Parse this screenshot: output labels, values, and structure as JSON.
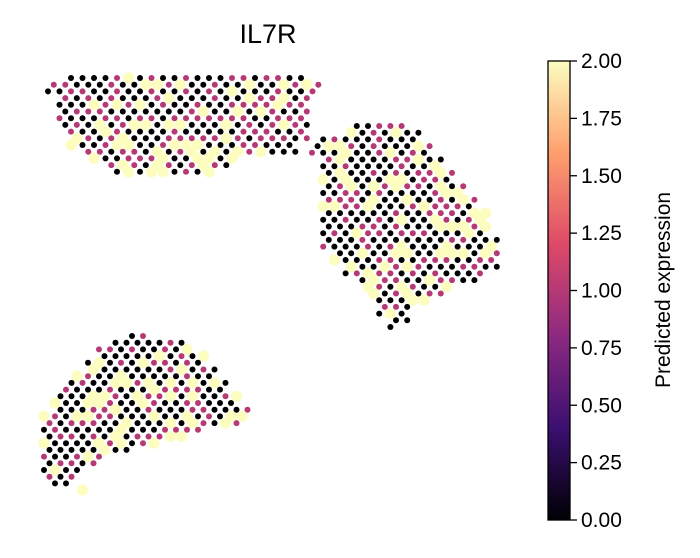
{
  "chart_data": {
    "type": "scatter",
    "title": "IL7R",
    "xlabel": "",
    "ylabel": "",
    "grid": false,
    "axes_visible": false,
    "colormap": "magma",
    "colormap_stops": [
      "#000004",
      "#3b0f70",
      "#8c2981",
      "#de4968",
      "#fe9f6d",
      "#fcfdbf"
    ],
    "colorbar": {
      "label": "Predicted expression",
      "range": [
        0.0,
        2.0
      ],
      "ticks": [
        "0.00",
        "0.25",
        "0.50",
        "0.75",
        "1.00",
        "1.25",
        "1.50",
        "1.75",
        "2.00"
      ],
      "placement": "right"
    },
    "value_levels": [
      0.0,
      1.0,
      2.0
    ],
    "clusters": [
      {
        "name": "",
        "grid_origin": [
          48,
          78
        ],
        "grid_spacing": [
          11.5,
          6.7
        ],
        "rows": [
          {
            "row": 0,
            "col_start": 2,
            "col_end": 22
          },
          {
            "row": 1,
            "col_start": 0,
            "col_end": 23
          },
          {
            "row": 2,
            "col_start": 0,
            "col_end": 23
          },
          {
            "row": 3,
            "col_start": 1,
            "col_end": 22
          },
          {
            "row": 4,
            "col_start": 1,
            "col_end": 22
          },
          {
            "row": 5,
            "col_start": 1,
            "col_end": 22
          },
          {
            "row": 6,
            "col_start": 1,
            "col_end": 22
          },
          {
            "row": 7,
            "col_start": 1,
            "col_end": 22
          },
          {
            "row": 8,
            "col_start": 2,
            "col_end": 22
          },
          {
            "row": 9,
            "col_start": 2,
            "col_end": 22
          },
          {
            "row": 10,
            "col_start": 2,
            "col_end": 21
          },
          {
            "row": 11,
            "col_start": 3,
            "col_end": 21
          },
          {
            "row": 12,
            "col_start": 4,
            "col_end": 16
          },
          {
            "row": 13,
            "col_start": 5,
            "col_end": 15
          },
          {
            "row": 14,
            "col_start": 6,
            "col_end": 14
          }
        ],
        "probabilities": [
          0.47,
          0.33,
          0.2
        ],
        "seed": 11
      },
      {
        "name": "",
        "grid_origin": [
          312,
          126
        ],
        "grid_spacing": [
          11.2,
          6.7
        ],
        "rows": [
          {
            "row": 0,
            "col_start": 4,
            "col_end": 8
          },
          {
            "row": 1,
            "col_start": 3,
            "col_end": 9
          },
          {
            "row": 2,
            "col_start": 1,
            "col_end": 9
          },
          {
            "row": 3,
            "col_start": 0,
            "col_end": 10
          },
          {
            "row": 4,
            "col_start": 0,
            "col_end": 10
          },
          {
            "row": 5,
            "col_start": 1,
            "col_end": 11
          },
          {
            "row": 6,
            "col_start": 1,
            "col_end": 11
          },
          {
            "row": 7,
            "col_start": 1,
            "col_end": 12
          },
          {
            "row": 8,
            "col_start": 1,
            "col_end": 12
          },
          {
            "row": 9,
            "col_start": 1,
            "col_end": 13
          },
          {
            "row": 10,
            "col_start": 1,
            "col_end": 13
          },
          {
            "row": 11,
            "col_start": 1,
            "col_end": 14
          },
          {
            "row": 12,
            "col_start": 1,
            "col_end": 14
          },
          {
            "row": 13,
            "col_start": 1,
            "col_end": 15
          },
          {
            "row": 14,
            "col_start": 1,
            "col_end": 15
          },
          {
            "row": 15,
            "col_start": 1,
            "col_end": 15
          },
          {
            "row": 16,
            "col_start": 1,
            "col_end": 15
          },
          {
            "row": 17,
            "col_start": 1,
            "col_end": 16
          },
          {
            "row": 18,
            "col_start": 1,
            "col_end": 16
          },
          {
            "row": 19,
            "col_start": 2,
            "col_end": 16
          },
          {
            "row": 20,
            "col_start": 2,
            "col_end": 16
          },
          {
            "row": 21,
            "col_start": 3,
            "col_end": 16
          },
          {
            "row": 22,
            "col_start": 3,
            "col_end": 15
          },
          {
            "row": 23,
            "col_start": 4,
            "col_end": 14
          },
          {
            "row": 24,
            "col_start": 5,
            "col_end": 12
          },
          {
            "row": 25,
            "col_start": 5,
            "col_end": 11
          },
          {
            "row": 26,
            "col_start": 6,
            "col_end": 10
          },
          {
            "row": 27,
            "col_start": 6,
            "col_end": 8
          },
          {
            "row": 28,
            "col_start": 6,
            "col_end": 8
          },
          {
            "row": 29,
            "col_start": 7,
            "col_end": 8
          },
          {
            "row": 30,
            "col_start": 7,
            "col_end": 7
          }
        ],
        "probabilities": [
          0.5,
          0.3,
          0.2
        ],
        "seed": 23
      },
      {
        "name": "",
        "grid_origin": [
          44,
          336
        ],
        "grid_spacing": [
          11.0,
          6.7
        ],
        "rows": [
          {
            "row": 0,
            "col_start": 8,
            "col_end": 9
          },
          {
            "row": 1,
            "col_start": 6,
            "col_end": 12
          },
          {
            "row": 2,
            "col_start": 5,
            "col_end": 13
          },
          {
            "row": 3,
            "col_start": 5,
            "col_end": 14
          },
          {
            "row": 4,
            "col_start": 4,
            "col_end": 14
          },
          {
            "row": 5,
            "col_start": 4,
            "col_end": 15
          },
          {
            "row": 6,
            "col_start": 3,
            "col_end": 15
          },
          {
            "row": 7,
            "col_start": 2,
            "col_end": 16
          },
          {
            "row": 8,
            "col_start": 2,
            "col_end": 16
          },
          {
            "row": 9,
            "col_start": 1,
            "col_end": 17
          },
          {
            "row": 10,
            "col_start": 1,
            "col_end": 17
          },
          {
            "row": 11,
            "col_start": 1,
            "col_end": 18
          },
          {
            "row": 12,
            "col_start": 0,
            "col_end": 18
          },
          {
            "row": 13,
            "col_start": 0,
            "col_end": 17
          },
          {
            "row": 14,
            "col_start": 0,
            "col_end": 14
          },
          {
            "row": 15,
            "col_start": 0,
            "col_end": 12
          },
          {
            "row": 16,
            "col_start": 0,
            "col_end": 10
          },
          {
            "row": 17,
            "col_start": 0,
            "col_end": 7
          },
          {
            "row": 18,
            "col_start": 0,
            "col_end": 5
          },
          {
            "row": 19,
            "col_start": 0,
            "col_end": 4
          },
          {
            "row": 20,
            "col_start": 0,
            "col_end": 3
          },
          {
            "row": 21,
            "col_start": 0,
            "col_end": 2
          },
          {
            "row": 22,
            "col_start": 1,
            "col_end": 2
          },
          {
            "row": 23,
            "col_start": 3,
            "col_end": 3
          }
        ],
        "probabilities": [
          0.52,
          0.28,
          0.2
        ],
        "seed": 37
      }
    ]
  }
}
